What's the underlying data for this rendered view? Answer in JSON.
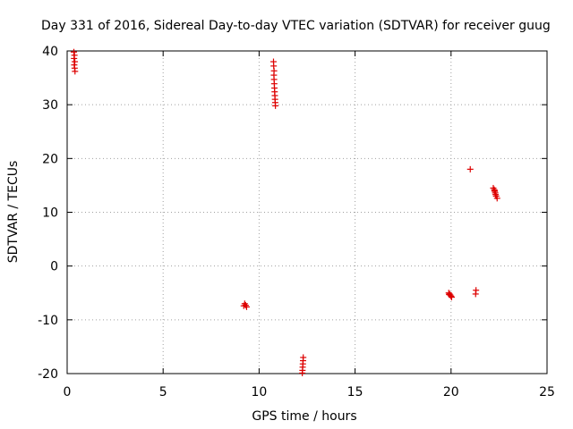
{
  "chart_data": {
    "type": "scatter",
    "title": "Day 331 of 2016, Sidereal Day-to-day VTEC variation (SDTVAR) for receiver guug",
    "xlabel": "GPS time / hours",
    "ylabel": "SDTVAR / TECUs",
    "xlim": [
      0,
      25
    ],
    "ylim": [
      -20,
      40
    ],
    "x_ticks": [
      0,
      5,
      10,
      15,
      20,
      25
    ],
    "y_ticks": [
      -20,
      -10,
      0,
      10,
      20,
      30,
      40
    ],
    "grid": true,
    "marker": "+",
    "marker_color": "#dd0000",
    "series": [
      {
        "name": "SDTVAR",
        "points": [
          [
            0.35,
            39.8
          ],
          [
            0.38,
            39.2
          ],
          [
            0.36,
            38.6
          ],
          [
            0.4,
            38.0
          ],
          [
            0.37,
            37.4
          ],
          [
            0.39,
            36.8
          ],
          [
            0.41,
            36.2
          ],
          [
            9.25,
            -7.0
          ],
          [
            9.3,
            -7.3
          ],
          [
            9.35,
            -7.6
          ],
          [
            9.2,
            -7.4
          ],
          [
            10.75,
            38.0
          ],
          [
            10.76,
            37.2
          ],
          [
            10.78,
            36.3
          ],
          [
            10.77,
            35.5
          ],
          [
            10.78,
            34.7
          ],
          [
            10.79,
            33.9
          ],
          [
            10.8,
            33.1
          ],
          [
            10.81,
            32.4
          ],
          [
            10.82,
            31.7
          ],
          [
            10.83,
            31.0
          ],
          [
            10.84,
            30.4
          ],
          [
            10.85,
            29.8
          ],
          [
            12.3,
            -17.0
          ],
          [
            12.29,
            -17.6
          ],
          [
            12.28,
            -18.2
          ],
          [
            12.27,
            -18.8
          ],
          [
            12.26,
            -19.4
          ],
          [
            12.25,
            -19.9
          ],
          [
            19.88,
            -5.0
          ],
          [
            19.92,
            -5.2
          ],
          [
            19.96,
            -5.4
          ],
          [
            20.0,
            -5.6
          ],
          [
            20.03,
            -5.8
          ],
          [
            19.9,
            -5.3
          ],
          [
            21.0,
            18.0
          ],
          [
            21.3,
            -4.5
          ],
          [
            21.28,
            -5.2
          ],
          [
            22.2,
            14.5
          ],
          [
            22.25,
            14.2
          ],
          [
            22.28,
            13.9
          ],
          [
            22.3,
            13.6
          ],
          [
            22.32,
            13.3
          ],
          [
            22.35,
            13.0
          ],
          [
            22.4,
            12.6
          ],
          [
            22.27,
            14.0
          ]
        ]
      }
    ]
  }
}
